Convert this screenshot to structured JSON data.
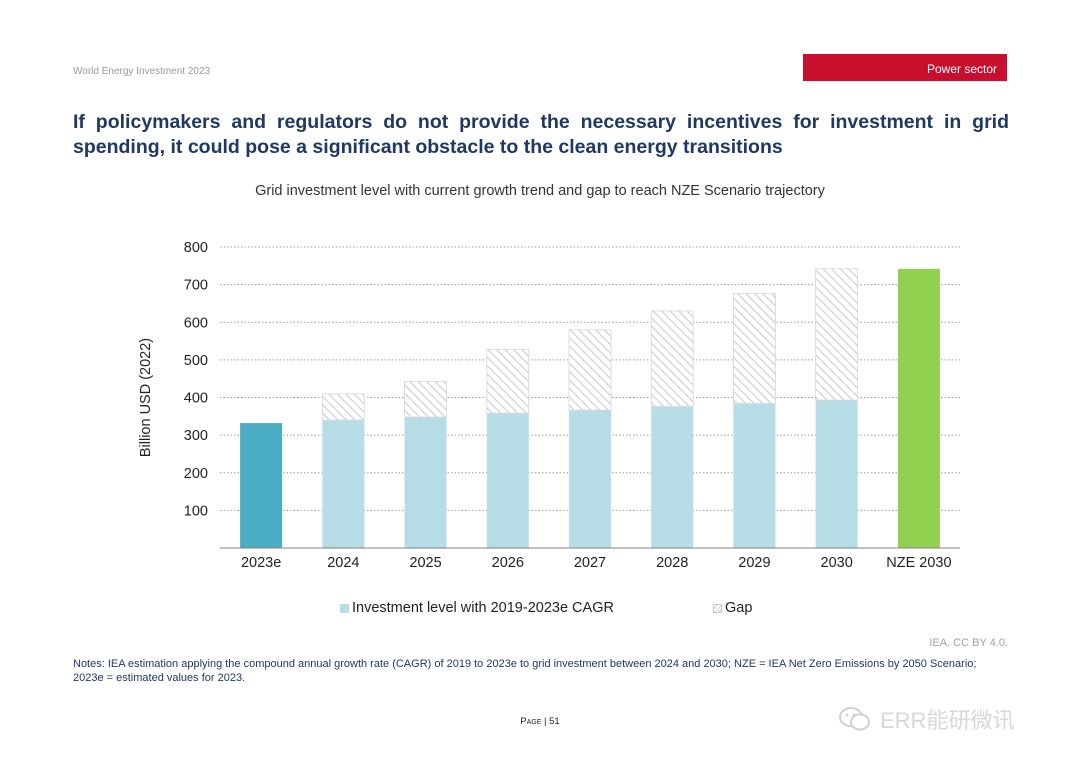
{
  "header": {
    "report_name": "World Energy Investment 2023",
    "section": "Power sector"
  },
  "headline": "If policymakers and regulators do not provide the necessary incentives for investment in grid spending, it could pose a significant obstacle to the clean energy transitions",
  "colors": {
    "accent_red": "#c8102e",
    "navy": "#1f3864",
    "actual_bar": "#4bacc6",
    "projection_bar": "#b7dde7",
    "nze_bar": "#92d050",
    "gap_hatch": "#cfcfcf"
  },
  "chart_data": {
    "type": "bar",
    "title": "Grid investment level with current growth trend and gap to reach NZE Scenario trajectory",
    "ylabel": "Billion USD (2022)",
    "xlabel": "",
    "ylim": [
      0,
      800
    ],
    "yticks": [
      100,
      200,
      300,
      400,
      500,
      600,
      700,
      800
    ],
    "grid": true,
    "stacked": true,
    "categories": [
      "2023e",
      "2024",
      "2025",
      "2026",
      "2027",
      "2028",
      "2029",
      "2030",
      "NZE 2030"
    ],
    "series": [
      {
        "name": "Investment level with 2019-2023e CAGR",
        "values": [
          332,
          340,
          348,
          358,
          366,
          376,
          384,
          393,
          742
        ]
      },
      {
        "name": "Gap",
        "values": [
          0,
          70,
          95,
          170,
          214,
          254,
          292,
          349,
          0
        ]
      }
    ],
    "bar_colors": [
      "#4bacc6",
      "#b7dde7",
      "#b7dde7",
      "#b7dde7",
      "#b7dde7",
      "#b7dde7",
      "#b7dde7",
      "#b7dde7",
      "#92d050"
    ],
    "legend_position": "bottom"
  },
  "legend": {
    "investment_label": "Investment level with 2019-2023e CAGR",
    "gap_label": "Gap"
  },
  "credit": "IEA. CC BY 4.0.",
  "notes": "Notes: IEA estimation applying the compound annual growth rate (CAGR) of 2019 to 2023e to grid investment between 2024 and 2030; NZE = IEA Net Zero Emissions by 2050 Scenario; 2023e = estimated values for 2023.",
  "page": {
    "label": "Page",
    "number": "51"
  },
  "watermark": "ERR能研微讯"
}
